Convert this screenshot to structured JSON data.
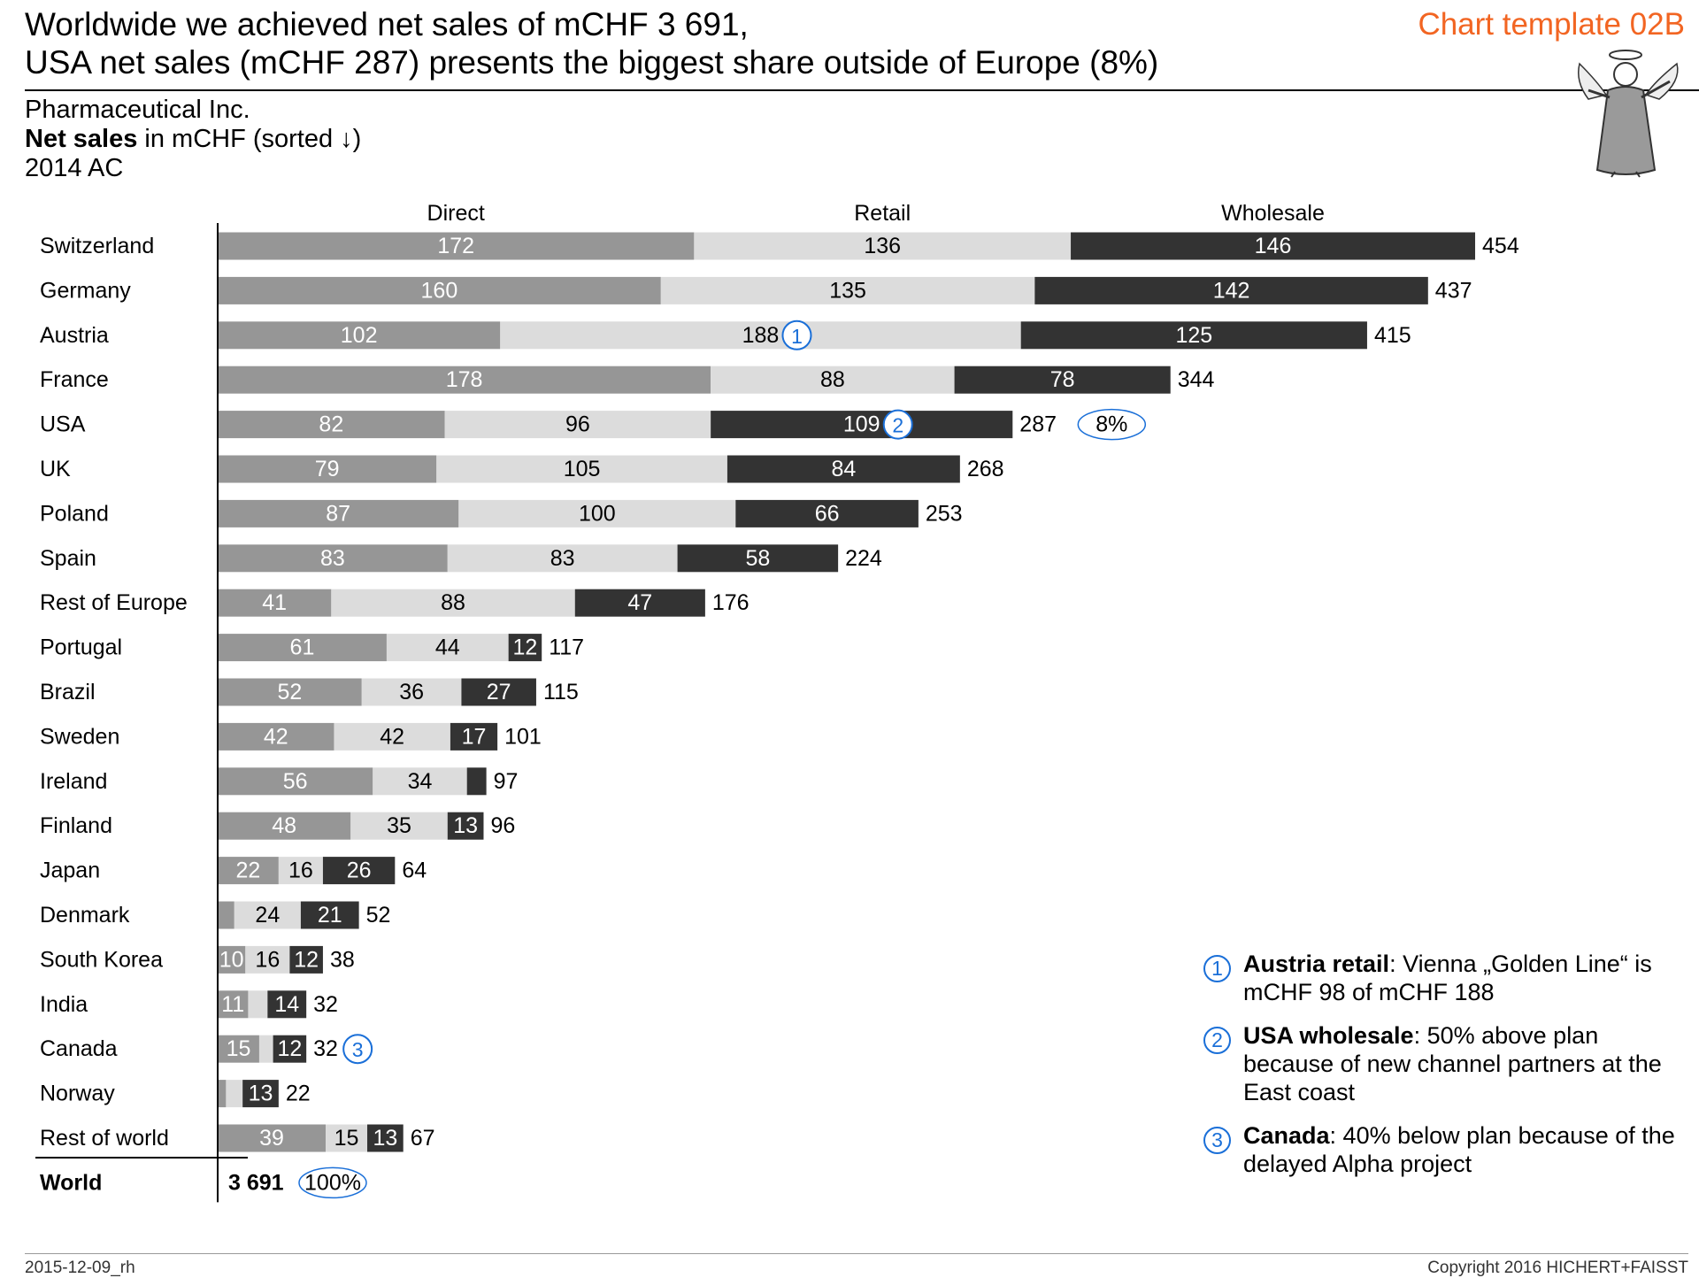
{
  "header": {
    "title_line1": "Worldwide we achieved net sales of mCHF 3 691,",
    "title_line2": "USA net sales (mCHF 287) presents the biggest share outside of Europe (8%)",
    "template_tag": "Chart template 02B"
  },
  "subtitle": {
    "company": "Pharmaceutical Inc.",
    "measure_bold": "Net sales",
    "measure_rest": " in mCHF (sorted ↓)",
    "period": "2014 AC"
  },
  "chart_data": {
    "type": "bar",
    "orientation": "horizontal",
    "stacked": true,
    "column_headers": [
      "Direct",
      "Retail",
      "Wholesale"
    ],
    "categories": [
      "Switzerland",
      "Germany",
      "Austria",
      "France",
      "USA",
      "UK",
      "Poland",
      "Spain",
      "Rest of Europe",
      "Portugal",
      "Brazil",
      "Sweden",
      "Ireland",
      "Finland",
      "Japan",
      "Denmark",
      "South Korea",
      "India",
      "Canada",
      "Norway",
      "Rest of world"
    ],
    "series": [
      {
        "name": "Direct",
        "color": "#969696",
        "label_color": "#ffffff",
        "values": [
          172,
          160,
          102,
          178,
          82,
          79,
          87,
          83,
          41,
          61,
          52,
          42,
          56,
          48,
          22,
          6,
          10,
          11,
          15,
          3,
          39
        ]
      },
      {
        "name": "Retail",
        "color": "#dcdcdc",
        "label_color": "#000000",
        "values": [
          136,
          135,
          188,
          88,
          96,
          105,
          100,
          83,
          88,
          44,
          36,
          42,
          34,
          35,
          16,
          24,
          16,
          7,
          5,
          6,
          15
        ]
      },
      {
        "name": "Wholesale",
        "color": "#333333",
        "label_color": "#ffffff",
        "values": [
          146,
          142,
          125,
          78,
          109,
          84,
          66,
          58,
          47,
          12,
          27,
          17,
          7,
          13,
          26,
          21,
          12,
          14,
          12,
          13,
          13
        ]
      }
    ],
    "segment_labels": [
      [
        "172",
        "136",
        "146"
      ],
      [
        "160",
        "135",
        "142"
      ],
      [
        "102",
        "188",
        "125"
      ],
      [
        "178",
        "88",
        "78"
      ],
      [
        "82",
        "96",
        "109"
      ],
      [
        "79",
        "105",
        "84"
      ],
      [
        "87",
        "100",
        "66"
      ],
      [
        "83",
        "83",
        "58"
      ],
      [
        "41",
        "88",
        "47"
      ],
      [
        "61",
        "44",
        "12"
      ],
      [
        "52",
        "36",
        "27"
      ],
      [
        "42",
        "42",
        "17"
      ],
      [
        "56",
        "34",
        ""
      ],
      [
        "48",
        "35",
        "13"
      ],
      [
        "22",
        "16",
        "26"
      ],
      [
        "",
        "24",
        "21"
      ],
      [
        "10",
        "16",
        "12"
      ],
      [
        "11",
        "",
        "14"
      ],
      [
        "15",
        "",
        "12"
      ],
      [
        "",
        "",
        "13"
      ],
      [
        "39",
        "15",
        "13"
      ]
    ],
    "totals": [
      "454",
      "437",
      "415",
      "344",
      "287",
      "268",
      "253",
      "224",
      "176",
      "117",
      "115",
      "101",
      "97",
      "96",
      "64",
      "52",
      "38",
      "32",
      "32",
      "22",
      "67"
    ],
    "total_row": {
      "label": "World",
      "value": "3 691",
      "share": "100%"
    },
    "share_callout": {
      "category": "USA",
      "text": "8%"
    },
    "markers": [
      {
        "category": "Austria",
        "series": "Retail",
        "text": "1"
      },
      {
        "category": "USA",
        "series": "Wholesale",
        "text": "2"
      },
      {
        "category": "Canada",
        "series": "Total",
        "text": "3"
      }
    ],
    "marker_color": "#1a6fd8"
  },
  "notes": [
    {
      "num": "1",
      "bold": "Austria retail",
      "text": ": Vienna „Golden Line“ is mCHF 98 of mCHF 188"
    },
    {
      "num": "2",
      "bold": "USA wholesale",
      "text": ": 50% above plan because of new channel partners at the East coast"
    },
    {
      "num": "3",
      "bold": "Canada",
      "text": ": 40% below plan because of the delayed Alpha project"
    }
  ],
  "footer": {
    "left": "2015-12-09_rh",
    "right": "Copyright 2016 HICHERT+FAISST"
  }
}
